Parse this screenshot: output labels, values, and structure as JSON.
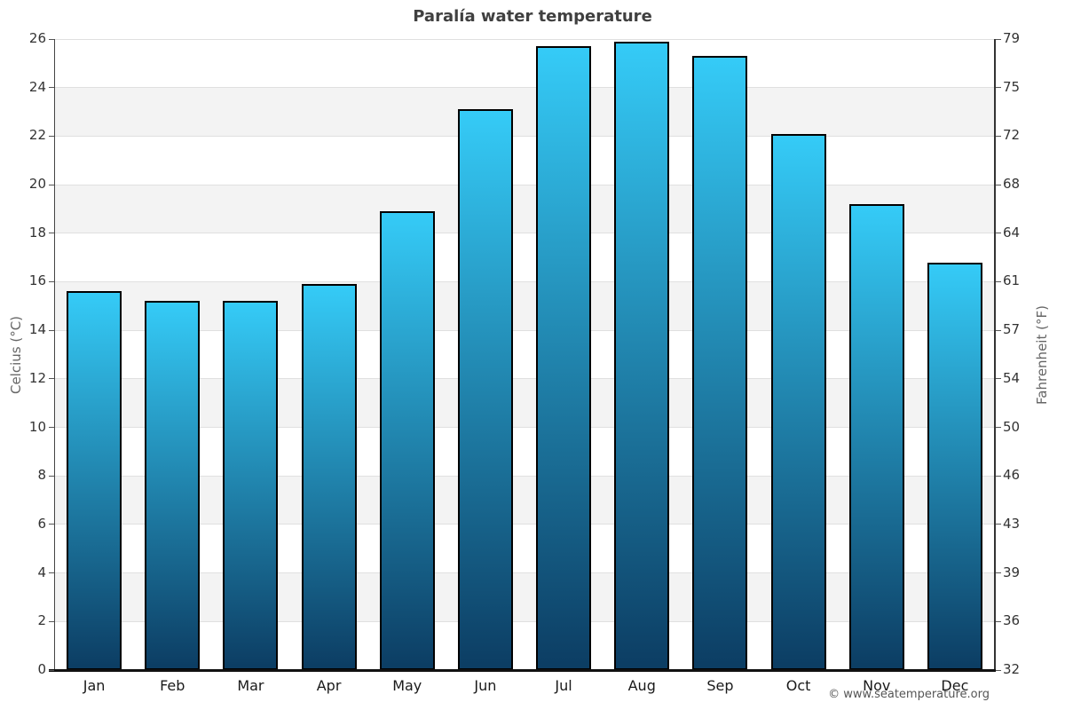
{
  "title": "Paralía water temperature",
  "footer": {
    "copyright": "© www.seatemperature.org"
  },
  "chart_data": {
    "type": "bar",
    "title": "Paralía water temperature",
    "categories": [
      "Jan",
      "Feb",
      "Mar",
      "Apr",
      "May",
      "Jun",
      "Jul",
      "Aug",
      "Sep",
      "Oct",
      "Nov",
      "Dec"
    ],
    "values": [
      15.6,
      15.2,
      15.2,
      15.9,
      18.9,
      23.1,
      25.7,
      25.9,
      25.3,
      22.1,
      19.2,
      16.8
    ],
    "ylabel_left": "Celcius (°C)",
    "ylabel_right": "Fahrenheit (°F)",
    "ylim_celsius": [
      0,
      26
    ],
    "celsius_ticks": [
      0,
      2,
      4,
      6,
      8,
      10,
      12,
      14,
      16,
      18,
      20,
      22,
      24,
      26
    ],
    "fahrenheit_ticks": [
      32,
      36,
      39,
      43,
      46,
      50,
      54,
      57,
      61,
      64,
      68,
      72,
      75,
      79
    ],
    "grid": "horizontal-gridlines-with-alternating-bands",
    "legend": "none",
    "colors": {
      "bar_gradient_top": "#35cbf7",
      "bar_gradient_bottom": "#0c3d63",
      "bar_border": "#000000",
      "band_gray": "#f3f3f3",
      "gridline": "#e0e0e0",
      "bottom_axis": "#111111",
      "side_axis": "#444444",
      "title_text": "#404040"
    }
  }
}
